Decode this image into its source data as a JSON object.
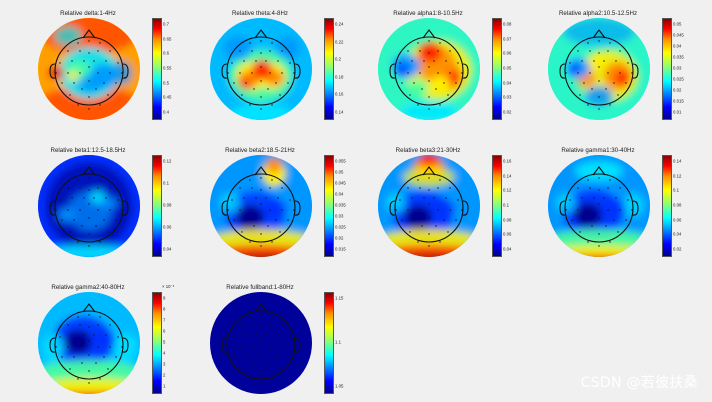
{
  "panels": [
    {
      "title": "Relative delta:1-4Hz",
      "ticks": [
        "0.7",
        "0.65",
        "0.6",
        "0.55",
        "0.5",
        "0.45",
        "0.4"
      ],
      "exponent": "",
      "pattern": "delta"
    },
    {
      "title": "Relative theta:4-8Hz",
      "ticks": [
        "0.24",
        "0.22",
        "0.2",
        "0.18",
        "0.16",
        "0.14"
      ],
      "exponent": "",
      "pattern": "theta"
    },
    {
      "title": "Relative alpha1:8-10.5Hz",
      "ticks": [
        "0.08",
        "0.07",
        "0.06",
        "0.05",
        "0.04",
        "0.03",
        "0.02"
      ],
      "exponent": "",
      "pattern": "alpha1"
    },
    {
      "title": "Relative alpha2:10.5-12.5Hz",
      "ticks": [
        "0.05",
        "0.045",
        "0.04",
        "0.035",
        "0.03",
        "0.025",
        "0.02",
        "0.015",
        "0.01"
      ],
      "exponent": "",
      "pattern": "alpha2"
    },
    {
      "title": "Relative beta1:12.5-18.5Hz",
      "ticks": [
        "0.12",
        "0.1",
        "0.08",
        "0.06",
        "0.04"
      ],
      "exponent": "",
      "pattern": "beta1"
    },
    {
      "title": "Relative beta2:18.5-21Hz",
      "ticks": [
        "0.055",
        "0.05",
        "0.045",
        "0.04",
        "0.035",
        "0.03",
        "0.025",
        "0.02",
        "0.015"
      ],
      "exponent": "",
      "pattern": "beta2"
    },
    {
      "title": "Relative beta3:21-30Hz",
      "ticks": [
        "0.16",
        "0.14",
        "0.12",
        "0.1",
        "0.08",
        "0.06",
        "0.04"
      ],
      "exponent": "",
      "pattern": "beta3"
    },
    {
      "title": "Relative gamma1:30-40Hz",
      "ticks": [
        "0.14",
        "0.12",
        "0.1",
        "0.08",
        "0.06",
        "0.04",
        "0.02"
      ],
      "exponent": "",
      "pattern": "gamma1"
    },
    {
      "title": "Relative gamma2:40-80Hz",
      "ticks": [
        "9",
        "8",
        "7",
        "6",
        "5",
        "4",
        "3",
        "2",
        "1"
      ],
      "exponent": "× 10⁻³",
      "pattern": "gamma2"
    },
    {
      "title": "Relative fullband:1-80Hz",
      "ticks": [
        "1.15",
        "1.1",
        "1.05"
      ],
      "exponent": "",
      "pattern": "full"
    }
  ],
  "watermark": "CSDN @若彼扶桑"
}
